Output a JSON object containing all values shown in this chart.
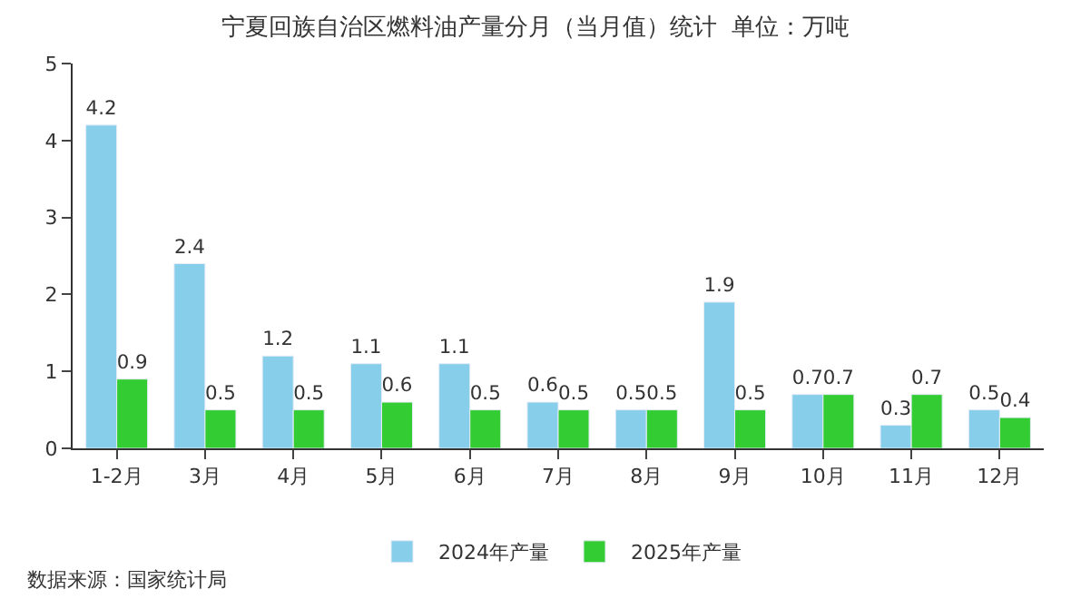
{
  "chart_data": {
    "type": "bar",
    "title": "宁夏回族自治区燃料油产量分月（当月值）统计  单位：万吨",
    "categories": [
      "1-2月",
      "3月",
      "4月",
      "5月",
      "6月",
      "7月",
      "8月",
      "9月",
      "10月",
      "11月",
      "12月"
    ],
    "series": [
      {
        "name": "2024年产量",
        "color": "#87ceeb",
        "values": [
          4.2,
          2.4,
          1.2,
          1.1,
          1.1,
          0.6,
          0.5,
          1.9,
          0.7,
          0.3,
          0.5
        ]
      },
      {
        "name": "2025年产量",
        "color": "#33cc33",
        "values": [
          0.9,
          0.5,
          0.5,
          0.6,
          0.5,
          0.5,
          0.5,
          0.5,
          0.7,
          0.7,
          0.4
        ]
      }
    ],
    "ylim": [
      0,
      5
    ],
    "yticks": [
      0,
      1,
      2,
      3,
      4,
      5
    ],
    "grid": false,
    "legend": "bottom",
    "data_labels": true,
    "annotations": [
      "数据来源：国家统计局"
    ]
  }
}
